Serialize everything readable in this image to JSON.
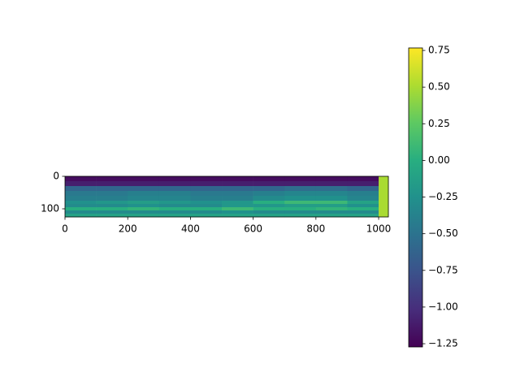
{
  "chart_data": {
    "type": "heatmap",
    "cmap": "viridis",
    "xbins": [
      0,
      100,
      200,
      300,
      400,
      500,
      600,
      700,
      800,
      900,
      1000,
      1031
    ],
    "ybins": [
      0,
      15,
      30,
      45,
      60,
      75,
      85,
      95,
      105,
      115,
      125
    ],
    "values": [
      [
        -1.2,
        -1.2,
        -1.2,
        -1.2,
        -1.2,
        -1.2,
        -1.2,
        -1.2,
        -1.2,
        -1.2,
        0.5
      ],
      [
        -1.1,
        -1.1,
        -1.1,
        -1.1,
        -1.1,
        -1.1,
        -1.1,
        -1.1,
        -1.1,
        -1.1,
        0.5
      ],
      [
        -0.6,
        -0.6,
        -0.6,
        -0.6,
        -0.6,
        -0.6,
        -0.6,
        -0.55,
        -0.55,
        -0.6,
        0.5
      ],
      [
        -0.45,
        -0.45,
        -0.4,
        -0.4,
        -0.45,
        -0.45,
        -0.4,
        -0.35,
        -0.35,
        -0.4,
        0.5
      ],
      [
        -0.4,
        -0.4,
        -0.35,
        -0.35,
        -0.4,
        -0.4,
        -0.3,
        -0.25,
        -0.25,
        -0.35,
        0.5
      ],
      [
        -0.25,
        -0.2,
        -0.15,
        -0.2,
        -0.25,
        -0.2,
        0.0,
        0.1,
        0.1,
        -0.1,
        0.5
      ],
      [
        -0.3,
        -0.3,
        -0.25,
        -0.3,
        -0.3,
        -0.2,
        -0.2,
        -0.15,
        -0.15,
        -0.25,
        0.5
      ],
      [
        0.0,
        0.0,
        0.05,
        0.0,
        0.0,
        0.1,
        0.0,
        0.0,
        0.05,
        0.0,
        0.5
      ],
      [
        -0.3,
        -0.3,
        -0.3,
        -0.3,
        -0.3,
        -0.25,
        -0.3,
        -0.3,
        -0.3,
        -0.3,
        0.5
      ],
      [
        -0.1,
        -0.1,
        -0.1,
        -0.1,
        -0.1,
        -0.1,
        -0.1,
        -0.1,
        -0.1,
        -0.1,
        0.5
      ]
    ],
    "xlim": [
      0,
      1031
    ],
    "ylim": [
      125,
      0
    ],
    "xticks": [
      0,
      200,
      400,
      600,
      800,
      1000
    ],
    "yticks": [
      0,
      100
    ],
    "colorbar": {
      "lim": [
        -1.272,
        0.767
      ],
      "ticks": [
        {
          "value": 0.75,
          "label": "0.75"
        },
        {
          "value": 0.5,
          "label": "0.50"
        },
        {
          "value": 0.25,
          "label": "0.25"
        },
        {
          "value": 0,
          "label": "0.00"
        },
        {
          "value": -0.25,
          "label": "−0.25"
        },
        {
          "value": -0.5,
          "label": "−0.50"
        },
        {
          "value": -0.75,
          "label": "−0.75"
        },
        {
          "value": -1,
          "label": "−1.00"
        },
        {
          "value": -1.25,
          "label": "−1.25"
        }
      ]
    }
  }
}
